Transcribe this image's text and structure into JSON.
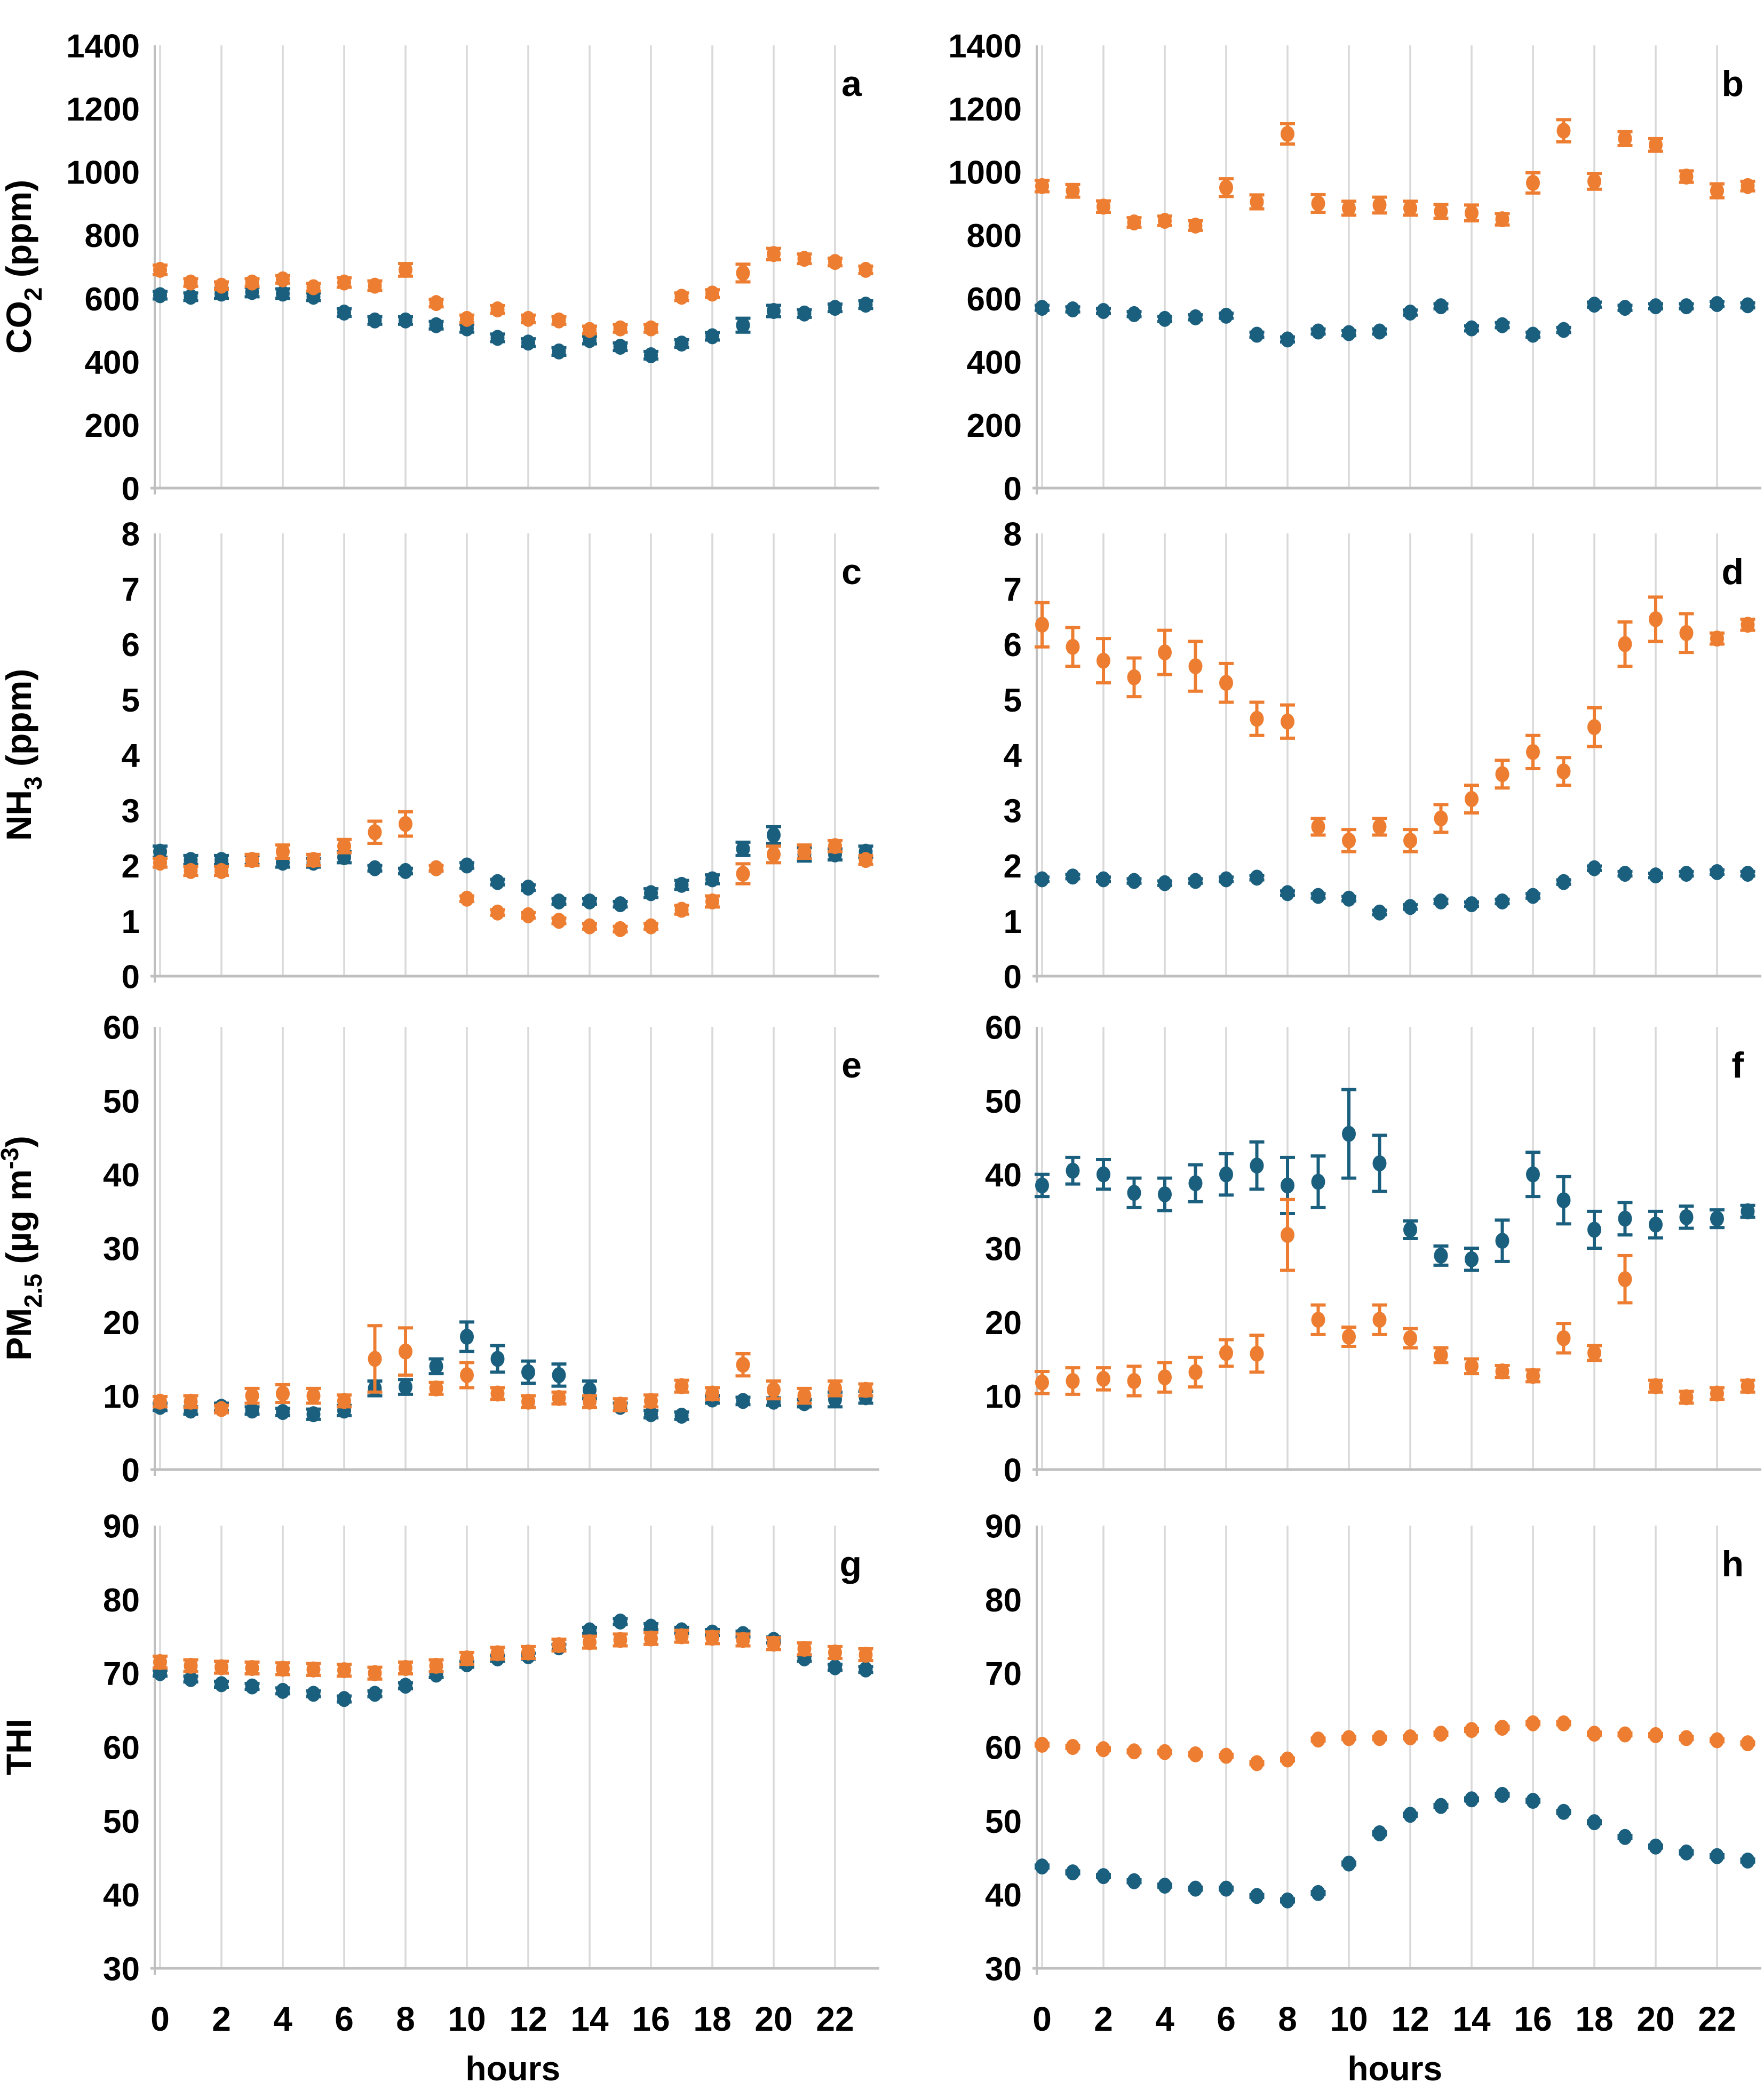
{
  "figure": {
    "xlabel": "hours",
    "x_hours": [
      0,
      1,
      2,
      3,
      4,
      5,
      6,
      7,
      8,
      9,
      10,
      11,
      12,
      13,
      14,
      15,
      16,
      17,
      18,
      19,
      20,
      21,
      22,
      23
    ],
    "xtick_labels": [
      "0",
      "2",
      "4",
      "6",
      "8",
      "10",
      "12",
      "14",
      "16",
      "18",
      "20",
      "22"
    ],
    "colors": {
      "blue": "#1B5F7F",
      "orange": "#ED7D31",
      "grid": "#D9D9D9",
      "axis": "#BFBFBF",
      "text": "#000000",
      "background": "#FFFFFF"
    }
  },
  "chart_data": [
    {
      "type": "scatter",
      "panel_letter": "a",
      "row": 0,
      "col": 0,
      "ylabel": "CO2 (ppm)",
      "ylabel_parts": [
        {
          "t": "CO",
          "pos": "n"
        },
        {
          "t": "2",
          "pos": "sub"
        },
        {
          "t": " (ppm)",
          "pos": "n"
        }
      ],
      "ylim": [
        0,
        1400
      ],
      "ystep": 200,
      "grid": "vertical",
      "legend": "none",
      "series": [
        {
          "name": "blue",
          "color": "blue",
          "values": [
            610,
            605,
            615,
            620,
            615,
            605,
            555,
            530,
            530,
            515,
            505,
            475,
            460,
            432,
            468,
            447,
            420,
            457,
            480,
            515,
            560,
            552,
            570,
            580
          ],
          "errors": [
            12,
            12,
            15,
            15,
            15,
            12,
            12,
            12,
            12,
            12,
            12,
            12,
            12,
            12,
            12,
            12,
            12,
            12,
            12,
            22,
            18,
            12,
            12,
            12
          ]
        },
        {
          "name": "orange",
          "color": "orange",
          "values": [
            690,
            650,
            640,
            650,
            660,
            635,
            650,
            640,
            690,
            585,
            535,
            565,
            535,
            530,
            500,
            505,
            505,
            605,
            615,
            680,
            740,
            725,
            715,
            690
          ],
          "errors": [
            15,
            12,
            12,
            12,
            12,
            12,
            15,
            15,
            20,
            12,
            12,
            12,
            12,
            12,
            12,
            12,
            12,
            12,
            12,
            28,
            18,
            15,
            12,
            12
          ]
        }
      ]
    },
    {
      "type": "scatter",
      "panel_letter": "b",
      "row": 0,
      "col": 1,
      "ylabel": "",
      "ylabel_parts": [],
      "ylim": [
        0,
        1400
      ],
      "ystep": 200,
      "grid": "vertical",
      "legend": "none",
      "series": [
        {
          "name": "blue",
          "color": "blue",
          "values": [
            570,
            565,
            560,
            550,
            535,
            540,
            545,
            485,
            470,
            495,
            490,
            495,
            555,
            575,
            505,
            515,
            485,
            500,
            580,
            570,
            575,
            575,
            582,
            578
          ],
          "errors": 8
        },
        {
          "name": "orange",
          "color": "orange",
          "values": [
            955,
            940,
            890,
            840,
            845,
            830,
            950,
            905,
            1120,
            900,
            885,
            895,
            885,
            875,
            870,
            850,
            965,
            1130,
            970,
            1105,
            1085,
            985,
            940,
            955
          ],
          "errors": [
            18,
            20,
            18,
            15,
            15,
            15,
            28,
            22,
            32,
            28,
            22,
            25,
            22,
            22,
            25,
            18,
            32,
            35,
            25,
            22,
            20,
            18,
            22,
            15
          ]
        }
      ]
    },
    {
      "type": "scatter",
      "panel_letter": "c",
      "row": 1,
      "col": 0,
      "ylabel": "NH3 (ppm)",
      "ylabel_parts": [
        {
          "t": "NH",
          "pos": "n"
        },
        {
          "t": "3",
          "pos": "sub"
        },
        {
          "t": " (ppm)",
          "pos": "n"
        }
      ],
      "ylim": [
        0,
        8
      ],
      "ystep": 1,
      "grid": "vertical",
      "legend": "none",
      "series": [
        {
          "name": "blue",
          "color": "blue",
          "values": [
            2.25,
            2.1,
            2.1,
            2.1,
            2.05,
            2.05,
            2.15,
            1.95,
            1.9,
            1.95,
            2.0,
            1.7,
            1.6,
            1.35,
            1.35,
            1.3,
            1.5,
            1.65,
            1.75,
            2.3,
            2.55,
            2.2,
            2.2,
            2.25
          ],
          "errors": [
            0.1,
            0.08,
            0.08,
            0.08,
            0.08,
            0.08,
            0.1,
            0.05,
            0.05,
            0.05,
            0.05,
            0.05,
            0.05,
            0.05,
            0.05,
            0.05,
            0.08,
            0.08,
            0.08,
            0.12,
            0.15,
            0.12,
            0.1,
            0.1
          ]
        },
        {
          "name": "orange",
          "color": "orange",
          "values": [
            2.05,
            1.9,
            1.9,
            2.1,
            2.25,
            2.1,
            2.35,
            2.6,
            2.75,
            1.95,
            1.4,
            1.15,
            1.1,
            1.0,
            0.9,
            0.85,
            0.9,
            1.2,
            1.35,
            1.85,
            2.2,
            2.25,
            2.35,
            2.1
          ],
          "errors": [
            0.08,
            0.08,
            0.08,
            0.1,
            0.12,
            0.1,
            0.12,
            0.2,
            0.22,
            0.05,
            0.05,
            0.05,
            0.05,
            0.05,
            0.05,
            0.05,
            0.05,
            0.08,
            0.1,
            0.18,
            0.15,
            0.12,
            0.1,
            0.08
          ]
        }
      ]
    },
    {
      "type": "scatter",
      "panel_letter": "d",
      "row": 1,
      "col": 1,
      "ylabel": "",
      "ylabel_parts": [],
      "ylim": [
        0,
        8
      ],
      "ystep": 1,
      "grid": "vertical",
      "legend": "none",
      "series": [
        {
          "name": "blue",
          "color": "blue",
          "values": [
            1.75,
            1.8,
            1.75,
            1.72,
            1.68,
            1.72,
            1.75,
            1.78,
            1.5,
            1.45,
            1.4,
            1.15,
            1.25,
            1.35,
            1.3,
            1.35,
            1.45,
            1.7,
            1.95,
            1.85,
            1.82,
            1.85,
            1.88,
            1.85
          ],
          "errors": 0.04
        },
        {
          "name": "orange",
          "color": "orange",
          "values": [
            6.35,
            5.95,
            5.7,
            5.4,
            5.85,
            5.6,
            5.3,
            4.65,
            4.6,
            2.7,
            2.45,
            2.7,
            2.45,
            2.85,
            3.2,
            3.65,
            4.05,
            3.7,
            4.5,
            6.0,
            6.45,
            6.2,
            6.1,
            6.35
          ],
          "errors": [
            0.4,
            0.35,
            0.4,
            0.35,
            0.4,
            0.45,
            0.35,
            0.3,
            0.3,
            0.15,
            0.2,
            0.15,
            0.2,
            0.25,
            0.25,
            0.25,
            0.3,
            0.25,
            0.35,
            0.4,
            0.4,
            0.35,
            0.1,
            0.1
          ]
        }
      ]
    },
    {
      "type": "scatter",
      "panel_letter": "e",
      "row": 2,
      "col": 0,
      "ylabel": "PM2.5 (ug m-3)",
      "ylabel_parts": [
        {
          "t": "PM",
          "pos": "n"
        },
        {
          "t": "2.5",
          "pos": "sub"
        },
        {
          "t": " (µg m",
          "pos": "n"
        },
        {
          "t": "-3",
          "pos": "sup"
        },
        {
          "t": ")",
          "pos": "n"
        }
      ],
      "ylim": [
        0,
        60
      ],
      "ystep": 10,
      "grid": "vertical",
      "legend": "none",
      "series": [
        {
          "name": "blue",
          "color": "blue",
          "values": [
            8.5,
            8.0,
            8.5,
            8.0,
            7.8,
            7.5,
            8.0,
            11.0,
            11.2,
            14.0,
            18.0,
            15.0,
            13.2,
            12.8,
            10.8,
            8.5,
            7.5,
            7.3,
            9.5,
            9.3,
            9.2,
            9.0,
            9.5,
            9.8
          ],
          "errors": [
            0.5,
            0.5,
            0.5,
            0.5,
            0.5,
            0.7,
            0.7,
            1.0,
            1.0,
            1.0,
            2.0,
            1.8,
            1.5,
            1.5,
            1.2,
            0.5,
            0.5,
            0.5,
            0.5,
            0.5,
            0.5,
            0.5,
            1.0,
            0.8
          ]
        },
        {
          "name": "orange",
          "color": "orange",
          "values": [
            9.2,
            9.2,
            8.2,
            10.0,
            10.3,
            10.0,
            9.3,
            15.0,
            16.0,
            11.0,
            12.8,
            10.3,
            9.2,
            9.7,
            9.2,
            8.8,
            9.3,
            11.3,
            10.3,
            14.2,
            10.8,
            10.0,
            11.0,
            10.8
          ],
          "errors": [
            0.7,
            0.8,
            0.5,
            1.0,
            1.2,
            1.0,
            0.8,
            4.5,
            3.2,
            0.8,
            1.7,
            0.8,
            0.8,
            0.8,
            0.8,
            0.8,
            0.8,
            0.8,
            0.8,
            1.5,
            1.2,
            1.0,
            1.0,
            0.8
          ]
        }
      ]
    },
    {
      "type": "scatter",
      "panel_letter": "f",
      "row": 2,
      "col": 1,
      "ylabel": "",
      "ylabel_parts": [],
      "ylim": [
        0,
        60
      ],
      "ystep": 10,
      "grid": "vertical",
      "legend": "none",
      "series": [
        {
          "name": "blue",
          "color": "blue",
          "values": [
            38.5,
            40.5,
            40.0,
            37.5,
            37.3,
            38.8,
            40.0,
            41.2,
            38.5,
            39.0,
            45.5,
            41.5,
            32.5,
            29.0,
            28.5,
            31.0,
            40.0,
            36.5,
            32.5,
            34.0,
            33.2,
            34.2,
            34.0,
            35.0
          ],
          "errors": [
            1.5,
            1.8,
            2.0,
            2.0,
            2.2,
            2.5,
            2.8,
            3.2,
            3.8,
            3.5,
            6.0,
            3.8,
            1.2,
            1.3,
            1.5,
            2.8,
            3.0,
            3.2,
            2.5,
            2.2,
            1.8,
            1.5,
            1.2,
            0.8
          ]
        },
        {
          "name": "orange",
          "color": "orange",
          "values": [
            11.8,
            12.0,
            12.3,
            12.0,
            12.5,
            13.2,
            15.8,
            15.7,
            31.8,
            20.3,
            18.0,
            20.3,
            17.8,
            15.5,
            14.0,
            13.3,
            12.7,
            17.8,
            15.8,
            25.8,
            11.3,
            9.8,
            10.3,
            11.3
          ],
          "errors": [
            1.5,
            1.8,
            1.5,
            2.0,
            2.0,
            2.0,
            1.8,
            2.5,
            4.8,
            2.0,
            1.3,
            2.0,
            1.3,
            1.0,
            1.0,
            0.8,
            0.8,
            2.0,
            1.0,
            3.2,
            0.8,
            0.8,
            0.8,
            0.8
          ]
        }
      ]
    },
    {
      "type": "scatter",
      "panel_letter": "g",
      "row": 3,
      "col": 0,
      "ylabel": "THI",
      "ylabel_parts": [
        {
          "t": "THI",
          "pos": "n"
        }
      ],
      "ylim": [
        30,
        90
      ],
      "ystep": 10,
      "grid": "vertical",
      "legend": "none",
      "series": [
        {
          "name": "blue",
          "color": "blue",
          "values": [
            70.0,
            69.2,
            68.5,
            68.2,
            67.6,
            67.2,
            66.5,
            67.2,
            68.3,
            69.8,
            71.2,
            72.0,
            72.3,
            73.5,
            75.8,
            77.0,
            76.3,
            75.8,
            75.5,
            75.3,
            74.5,
            72.0,
            70.8,
            70.5
          ],
          "errors": 0.4
        },
        {
          "name": "orange",
          "color": "orange",
          "values": [
            71.5,
            71.0,
            70.8,
            70.7,
            70.6,
            70.5,
            70.4,
            70.0,
            70.7,
            71.0,
            72.0,
            72.7,
            72.8,
            73.8,
            74.2,
            74.5,
            74.7,
            75.0,
            74.8,
            74.5,
            74.0,
            73.3,
            72.8,
            72.5
          ],
          "errors": 0.8
        }
      ]
    },
    {
      "type": "scatter",
      "panel_letter": "h",
      "row": 3,
      "col": 1,
      "ylabel": "",
      "ylabel_parts": [],
      "ylim": [
        30,
        90
      ],
      "ystep": 10,
      "grid": "vertical",
      "legend": "none",
      "series": [
        {
          "name": "blue",
          "color": "blue",
          "values": [
            43.8,
            43.0,
            42.5,
            41.8,
            41.2,
            40.8,
            40.8,
            39.8,
            39.2,
            40.2,
            44.2,
            48.3,
            50.8,
            52.0,
            52.9,
            53.5,
            52.7,
            51.2,
            49.8,
            47.8,
            46.5,
            45.7,
            45.2,
            44.6
          ],
          "errors": 0.2
        },
        {
          "name": "orange",
          "color": "orange",
          "values": [
            60.3,
            60.0,
            59.7,
            59.4,
            59.3,
            59.0,
            58.8,
            57.8,
            58.3,
            61.0,
            61.2,
            61.2,
            61.3,
            61.8,
            62.3,
            62.6,
            63.2,
            63.2,
            61.8,
            61.7,
            61.6,
            61.2,
            60.9,
            60.5
          ],
          "errors": 0.2
        }
      ]
    }
  ]
}
